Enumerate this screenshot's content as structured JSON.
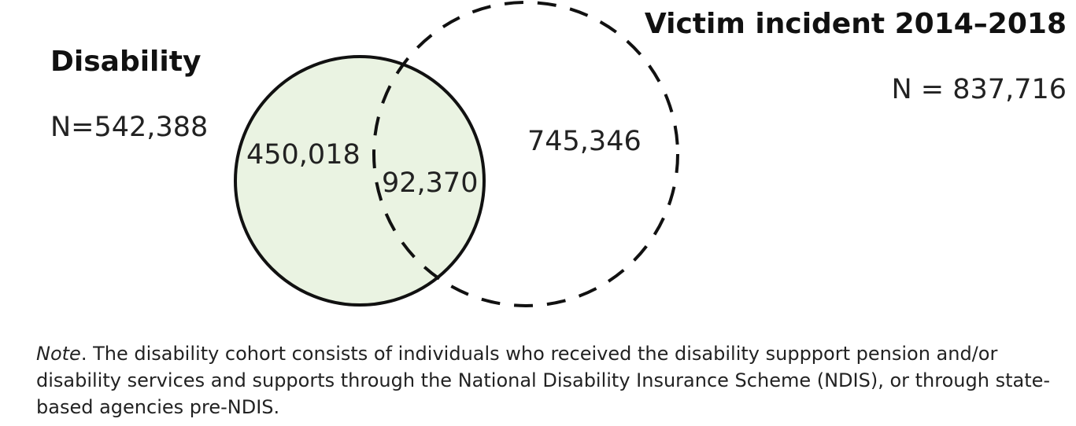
{
  "left_set": {
    "title": "Disability",
    "n": "N=542,388"
  },
  "right_set": {
    "title": "Victim incident 2014–2018",
    "n": "N = 837,716"
  },
  "regions": {
    "left_only": "450,018",
    "overlap": "92,370",
    "right_only": "745,346"
  },
  "colors": {
    "left_fill": "#eaf3e2",
    "stroke": "#111111"
  },
  "note": {
    "prefix": "Note",
    "text": ". The disability cohort consists of individuals who received the disability suppport pension and/or disability services and supports through the National Disability Insurance Scheme (NDIS), or through state-based agencies pre-NDIS."
  }
}
